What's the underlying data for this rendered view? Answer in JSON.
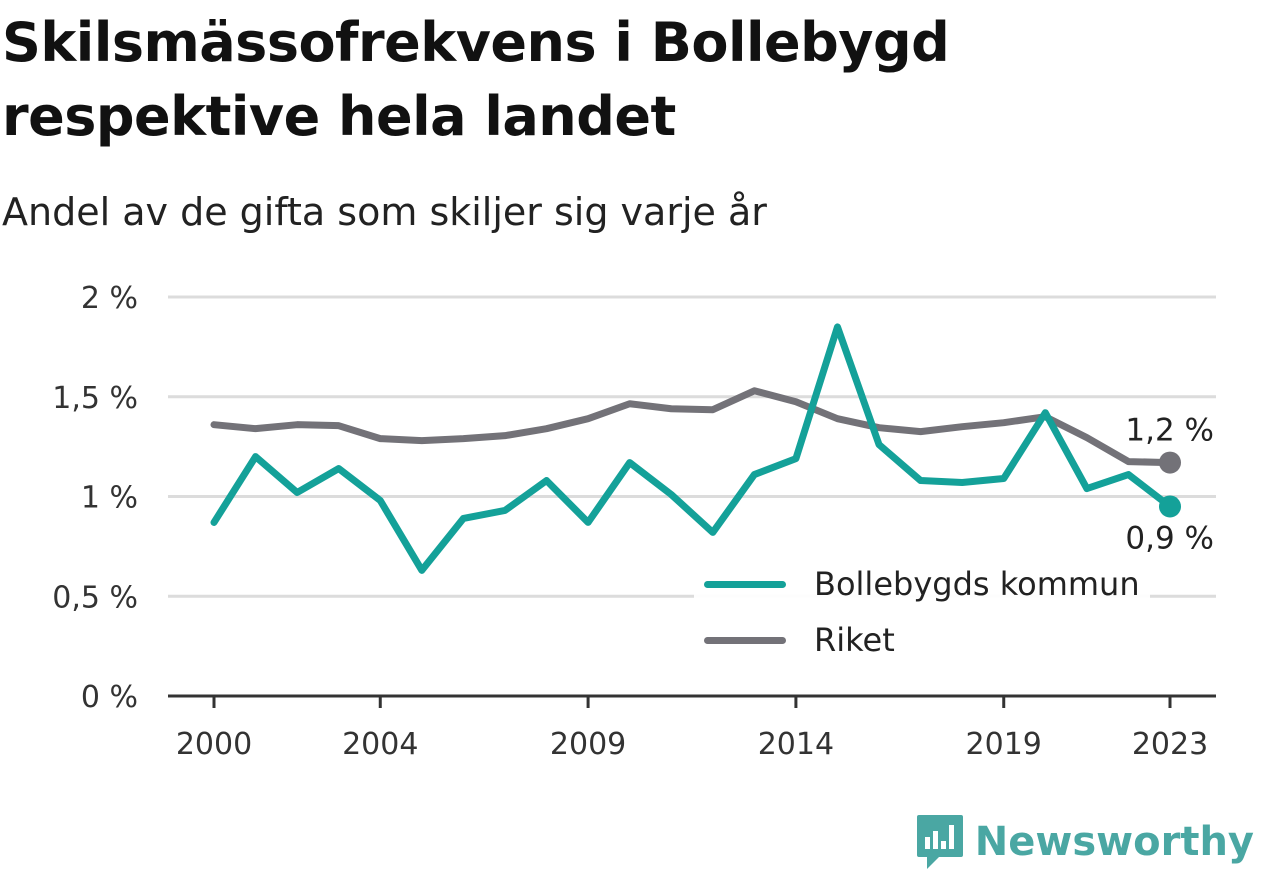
{
  "title": "Skilsmässofrekvens i Bollebygd respektive hela landet",
  "subtitle": "Andel av de gifta som skiljer sig varje år",
  "brand": {
    "name": "Newsworthy",
    "icon": "newsworthy-logo-icon",
    "color": "#4aa7a3"
  },
  "chart_data": {
    "type": "line",
    "title": "Skilsmässofrekvens i Bollebygd respektive hela landet",
    "subtitle": "Andel av de gifta som skiljer sig varje år",
    "xlabel": "",
    "ylabel": "",
    "x": [
      2000,
      2001,
      2002,
      2003,
      2004,
      2005,
      2006,
      2007,
      2008,
      2009,
      2010,
      2011,
      2012,
      2013,
      2014,
      2015,
      2016,
      2017,
      2018,
      2019,
      2020,
      2021,
      2022,
      2023
    ],
    "x_tick_values": [
      2000,
      2004,
      2009,
      2014,
      2019,
      2023
    ],
    "x_tick_labels": [
      "2000",
      "2004",
      "2009",
      "2014",
      "2019",
      "2023"
    ],
    "ylim": [
      0,
      2
    ],
    "y_tick_values": [
      0,
      0.5,
      1,
      1.5,
      2
    ],
    "y_tick_labels": [
      "0 %",
      "0,5 %",
      "1 %",
      "1,5 %",
      "2 %"
    ],
    "grid": true,
    "legend_position": "bottom-right",
    "series": [
      {
        "name": "Bollebygds kommun",
        "color": "#14a199",
        "values": [
          0.87,
          1.2,
          1.02,
          1.14,
          0.98,
          0.63,
          0.89,
          0.93,
          1.08,
          0.87,
          1.17,
          1.01,
          0.82,
          1.11,
          1.19,
          1.85,
          1.26,
          1.08,
          1.07,
          1.09,
          1.42,
          1.04,
          1.11,
          0.95
        ],
        "end_label": "0,9 %"
      },
      {
        "name": "Riket",
        "color": "#737278",
        "values": [
          1.36,
          1.34,
          1.36,
          1.355,
          1.29,
          1.28,
          1.29,
          1.305,
          1.34,
          1.39,
          1.465,
          1.44,
          1.435,
          1.53,
          1.475,
          1.39,
          1.345,
          1.325,
          1.35,
          1.37,
          1.4,
          1.295,
          1.175,
          1.17
        ],
        "end_label": "1,2 %"
      }
    ]
  }
}
